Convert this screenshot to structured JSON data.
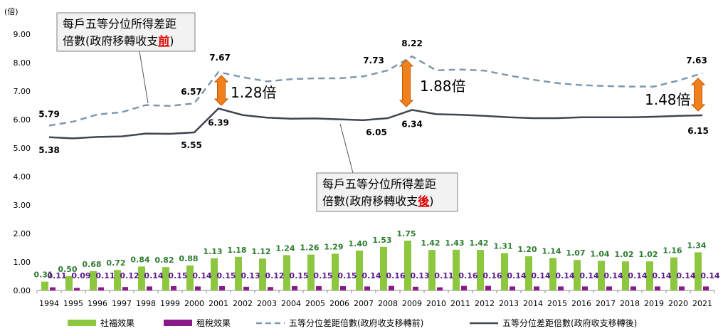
{
  "chart_data": {
    "type": "bar",
    "unit_label": "(倍)",
    "ylim": [
      0,
      9
    ],
    "yticks": [
      "0.00",
      "1.00",
      "2.00",
      "3.00",
      "4.00",
      "5.00",
      "6.00",
      "7.00",
      "8.00",
      "9.00"
    ],
    "categories": [
      "1994",
      "1995",
      "1996",
      "1997",
      "1998",
      "1999",
      "2000",
      "2001",
      "2002",
      "2003",
      "2004",
      "2005",
      "2006",
      "2007",
      "2008",
      "2009",
      "2010",
      "2011",
      "2012",
      "2013",
      "2014",
      "2015",
      "2016",
      "2017",
      "2018",
      "2019",
      "2020",
      "2021"
    ],
    "series": [
      {
        "name": "社福效果",
        "kind": "bar",
        "color": "#8dc63f",
        "values": [
          0.31,
          0.5,
          0.68,
          0.72,
          0.84,
          0.82,
          0.88,
          1.13,
          1.18,
          1.12,
          1.24,
          1.26,
          1.29,
          1.4,
          1.53,
          1.75,
          1.42,
          1.43,
          1.42,
          1.31,
          1.2,
          1.14,
          1.07,
          1.04,
          1.02,
          1.02,
          1.16,
          1.34
        ]
      },
      {
        "name": "租稅效果",
        "kind": "bar",
        "color": "#8b1a89",
        "values": [
          0.11,
          0.09,
          0.11,
          0.12,
          0.14,
          0.15,
          0.14,
          0.15,
          0.13,
          0.12,
          0.15,
          0.15,
          0.15,
          0.14,
          0.16,
          0.13,
          0.11,
          0.16,
          0.16,
          0.14,
          0.14,
          0.14,
          0.14,
          0.14,
          0.14,
          0.14,
          0.14,
          0.14
        ]
      },
      {
        "name": "五等分位差距倍數(政府收支移轉前)",
        "kind": "line",
        "style": "dashed",
        "color": "#7f98b0",
        "values": [
          5.79,
          5.93,
          6.18,
          6.26,
          6.51,
          6.48,
          6.57,
          7.67,
          7.49,
          7.34,
          7.42,
          7.45,
          7.45,
          7.52,
          7.73,
          8.22,
          7.73,
          7.76,
          7.72,
          7.55,
          7.4,
          7.28,
          7.21,
          7.18,
          7.16,
          7.16,
          7.37,
          7.63
        ]
      },
      {
        "name": "五等分位差距倍數(政府收支移轉後)",
        "kind": "line",
        "style": "solid",
        "color": "#404553",
        "values": [
          5.38,
          5.34,
          5.39,
          5.41,
          5.51,
          5.5,
          5.55,
          6.39,
          6.16,
          6.07,
          6.03,
          6.04,
          6.01,
          5.98,
          6.05,
          6.34,
          6.19,
          6.17,
          6.13,
          6.08,
          6.05,
          6.05,
          6.08,
          6.08,
          6.08,
          6.1,
          6.13,
          6.15
        ]
      }
    ],
    "line_labels": {
      "before": [
        {
          "year": "1994",
          "text": "5.79"
        },
        {
          "year": "2000",
          "text": "6.57"
        },
        {
          "year": "2001",
          "text": "7.67"
        },
        {
          "year": "2008",
          "text": "7.73"
        },
        {
          "year": "2009",
          "text": "8.22"
        },
        {
          "year": "2021",
          "text": "7.63"
        }
      ],
      "after": [
        {
          "year": "1994",
          "text": "5.38"
        },
        {
          "year": "2000",
          "text": "5.55"
        },
        {
          "year": "2001",
          "text": "6.39"
        },
        {
          "year": "2008",
          "text": "6.05"
        },
        {
          "year": "2009",
          "text": "6.34"
        },
        {
          "year": "2021",
          "text": "6.15"
        }
      ]
    },
    "ratio_annotations": [
      {
        "year": "2001",
        "text": "1.28倍"
      },
      {
        "year": "2009",
        "text": "1.88倍"
      },
      {
        "year": "2021",
        "text": "1.48倍"
      }
    ],
    "callouts": [
      {
        "line1": "每戶五等分位所得差距",
        "line2_prefix": "倍數(政府移轉收支",
        "line2_em": "前",
        "line2_suffix": ")"
      },
      {
        "line1": "每戶五等分位所得差距",
        "line2_prefix": "倍數(政府移轉收支",
        "line2_em": "後",
        "line2_suffix": ")"
      }
    ],
    "legend_position": "bottom",
    "grid": false
  }
}
